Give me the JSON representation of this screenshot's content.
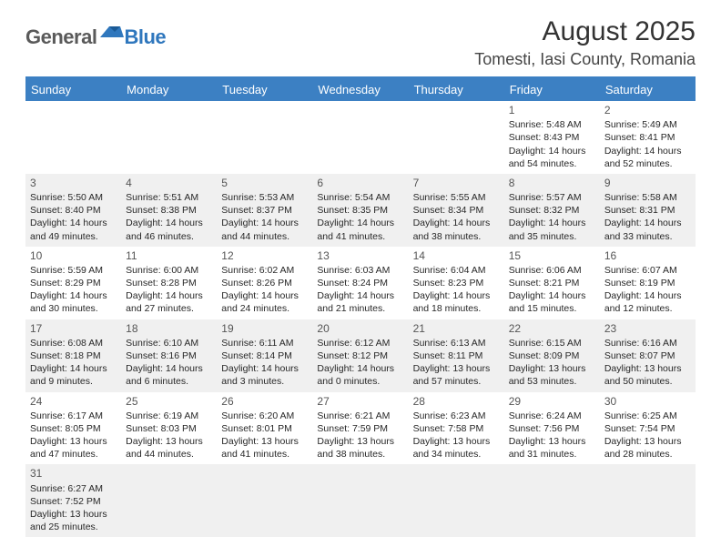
{
  "brand": {
    "part1": "General",
    "part2": "Blue"
  },
  "title": "August 2025",
  "location": "Tomesti, Iasi County, Romania",
  "colors": {
    "header_bg": "#3c80c3",
    "shade_bg": "#f0f0f0",
    "text": "#272727",
    "logo_gray": "#5a5a5a",
    "logo_blue": "#2f77bd"
  },
  "dayNames": [
    "Sunday",
    "Monday",
    "Tuesday",
    "Wednesday",
    "Thursday",
    "Friday",
    "Saturday"
  ],
  "weeks": [
    [
      {
        "n": "",
        "sr": "",
        "ss": "",
        "dl": ""
      },
      {
        "n": "",
        "sr": "",
        "ss": "",
        "dl": ""
      },
      {
        "n": "",
        "sr": "",
        "ss": "",
        "dl": ""
      },
      {
        "n": "",
        "sr": "",
        "ss": "",
        "dl": ""
      },
      {
        "n": "",
        "sr": "",
        "ss": "",
        "dl": ""
      },
      {
        "n": "1",
        "sr": "Sunrise: 5:48 AM",
        "ss": "Sunset: 8:43 PM",
        "dl": "Daylight: 14 hours and 54 minutes."
      },
      {
        "n": "2",
        "sr": "Sunrise: 5:49 AM",
        "ss": "Sunset: 8:41 PM",
        "dl": "Daylight: 14 hours and 52 minutes."
      }
    ],
    [
      {
        "n": "3",
        "sr": "Sunrise: 5:50 AM",
        "ss": "Sunset: 8:40 PM",
        "dl": "Daylight: 14 hours and 49 minutes."
      },
      {
        "n": "4",
        "sr": "Sunrise: 5:51 AM",
        "ss": "Sunset: 8:38 PM",
        "dl": "Daylight: 14 hours and 46 minutes."
      },
      {
        "n": "5",
        "sr": "Sunrise: 5:53 AM",
        "ss": "Sunset: 8:37 PM",
        "dl": "Daylight: 14 hours and 44 minutes."
      },
      {
        "n": "6",
        "sr": "Sunrise: 5:54 AM",
        "ss": "Sunset: 8:35 PM",
        "dl": "Daylight: 14 hours and 41 minutes."
      },
      {
        "n": "7",
        "sr": "Sunrise: 5:55 AM",
        "ss": "Sunset: 8:34 PM",
        "dl": "Daylight: 14 hours and 38 minutes."
      },
      {
        "n": "8",
        "sr": "Sunrise: 5:57 AM",
        "ss": "Sunset: 8:32 PM",
        "dl": "Daylight: 14 hours and 35 minutes."
      },
      {
        "n": "9",
        "sr": "Sunrise: 5:58 AM",
        "ss": "Sunset: 8:31 PM",
        "dl": "Daylight: 14 hours and 33 minutes."
      }
    ],
    [
      {
        "n": "10",
        "sr": "Sunrise: 5:59 AM",
        "ss": "Sunset: 8:29 PM",
        "dl": "Daylight: 14 hours and 30 minutes."
      },
      {
        "n": "11",
        "sr": "Sunrise: 6:00 AM",
        "ss": "Sunset: 8:28 PM",
        "dl": "Daylight: 14 hours and 27 minutes."
      },
      {
        "n": "12",
        "sr": "Sunrise: 6:02 AM",
        "ss": "Sunset: 8:26 PM",
        "dl": "Daylight: 14 hours and 24 minutes."
      },
      {
        "n": "13",
        "sr": "Sunrise: 6:03 AM",
        "ss": "Sunset: 8:24 PM",
        "dl": "Daylight: 14 hours and 21 minutes."
      },
      {
        "n": "14",
        "sr": "Sunrise: 6:04 AM",
        "ss": "Sunset: 8:23 PM",
        "dl": "Daylight: 14 hours and 18 minutes."
      },
      {
        "n": "15",
        "sr": "Sunrise: 6:06 AM",
        "ss": "Sunset: 8:21 PM",
        "dl": "Daylight: 14 hours and 15 minutes."
      },
      {
        "n": "16",
        "sr": "Sunrise: 6:07 AM",
        "ss": "Sunset: 8:19 PM",
        "dl": "Daylight: 14 hours and 12 minutes."
      }
    ],
    [
      {
        "n": "17",
        "sr": "Sunrise: 6:08 AM",
        "ss": "Sunset: 8:18 PM",
        "dl": "Daylight: 14 hours and 9 minutes."
      },
      {
        "n": "18",
        "sr": "Sunrise: 6:10 AM",
        "ss": "Sunset: 8:16 PM",
        "dl": "Daylight: 14 hours and 6 minutes."
      },
      {
        "n": "19",
        "sr": "Sunrise: 6:11 AM",
        "ss": "Sunset: 8:14 PM",
        "dl": "Daylight: 14 hours and 3 minutes."
      },
      {
        "n": "20",
        "sr": "Sunrise: 6:12 AM",
        "ss": "Sunset: 8:12 PM",
        "dl": "Daylight: 14 hours and 0 minutes."
      },
      {
        "n": "21",
        "sr": "Sunrise: 6:13 AM",
        "ss": "Sunset: 8:11 PM",
        "dl": "Daylight: 13 hours and 57 minutes."
      },
      {
        "n": "22",
        "sr": "Sunrise: 6:15 AM",
        "ss": "Sunset: 8:09 PM",
        "dl": "Daylight: 13 hours and 53 minutes."
      },
      {
        "n": "23",
        "sr": "Sunrise: 6:16 AM",
        "ss": "Sunset: 8:07 PM",
        "dl": "Daylight: 13 hours and 50 minutes."
      }
    ],
    [
      {
        "n": "24",
        "sr": "Sunrise: 6:17 AM",
        "ss": "Sunset: 8:05 PM",
        "dl": "Daylight: 13 hours and 47 minutes."
      },
      {
        "n": "25",
        "sr": "Sunrise: 6:19 AM",
        "ss": "Sunset: 8:03 PM",
        "dl": "Daylight: 13 hours and 44 minutes."
      },
      {
        "n": "26",
        "sr": "Sunrise: 6:20 AM",
        "ss": "Sunset: 8:01 PM",
        "dl": "Daylight: 13 hours and 41 minutes."
      },
      {
        "n": "27",
        "sr": "Sunrise: 6:21 AM",
        "ss": "Sunset: 7:59 PM",
        "dl": "Daylight: 13 hours and 38 minutes."
      },
      {
        "n": "28",
        "sr": "Sunrise: 6:23 AM",
        "ss": "Sunset: 7:58 PM",
        "dl": "Daylight: 13 hours and 34 minutes."
      },
      {
        "n": "29",
        "sr": "Sunrise: 6:24 AM",
        "ss": "Sunset: 7:56 PM",
        "dl": "Daylight: 13 hours and 31 minutes."
      },
      {
        "n": "30",
        "sr": "Sunrise: 6:25 AM",
        "ss": "Sunset: 7:54 PM",
        "dl": "Daylight: 13 hours and 28 minutes."
      }
    ],
    [
      {
        "n": "31",
        "sr": "Sunrise: 6:27 AM",
        "ss": "Sunset: 7:52 PM",
        "dl": "Daylight: 13 hours and 25 minutes."
      },
      {
        "n": "",
        "sr": "",
        "ss": "",
        "dl": ""
      },
      {
        "n": "",
        "sr": "",
        "ss": "",
        "dl": ""
      },
      {
        "n": "",
        "sr": "",
        "ss": "",
        "dl": ""
      },
      {
        "n": "",
        "sr": "",
        "ss": "",
        "dl": ""
      },
      {
        "n": "",
        "sr": "",
        "ss": "",
        "dl": ""
      },
      {
        "n": "",
        "sr": "",
        "ss": "",
        "dl": ""
      }
    ]
  ]
}
